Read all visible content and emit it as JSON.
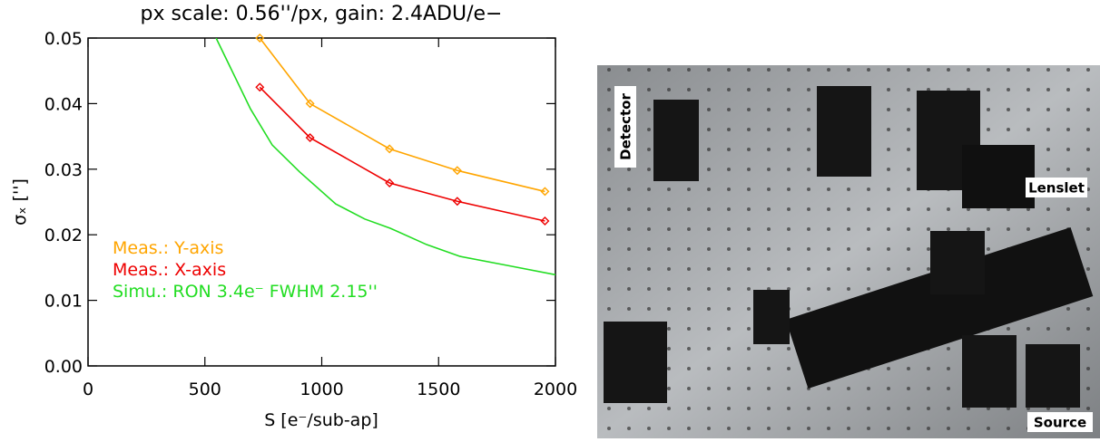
{
  "chart_data": {
    "type": "line",
    "title": "px scale: 0.56''/px, gain: 2.4ADU/e−",
    "x_label": "S [e⁻/sub-ap]",
    "y_label": "σₓ ['']",
    "xlim": [
      0,
      2000
    ],
    "xticks": [
      0,
      500,
      1000,
      1500,
      2000
    ],
    "ylim": [
      0,
      0.05
    ],
    "yticks": [
      {
        "value": 0,
        "label": "0.00"
      },
      {
        "value": 0.01,
        "label": "0.01"
      },
      {
        "value": 0.02,
        "label": "0.02"
      },
      {
        "value": 0.03,
        "label": "0.03"
      },
      {
        "value": 0.04,
        "label": "0.04"
      },
      {
        "value": 0.05,
        "label": "0.05"
      }
    ],
    "series": [
      {
        "name": "Meas.: Y-axis",
        "color": "#ffa500",
        "marker": "diamond",
        "x": [
          735,
          950,
          1290,
          1580,
          1955
        ],
        "values": [
          0.05,
          0.04,
          0.0331,
          0.0298,
          0.0266
        ]
      },
      {
        "name": "Meas.: X-axis",
        "color": "#ee0000",
        "marker": "diamond",
        "x": [
          735,
          950,
          1290,
          1580,
          1955
        ],
        "values": [
          0.0425,
          0.0348,
          0.0279,
          0.0251,
          0.0221
        ]
      },
      {
        "name": "Simu.: RON 3.4e⁻ FWHM 2.15''",
        "color": "#22dd22",
        "marker": "none",
        "x": [
          548,
          695,
          788,
          905,
          1060,
          1184,
          1293,
          1449,
          1592,
          1798,
          2000
        ],
        "values": [
          0.05,
          0.0392,
          0.0337,
          0.0296,
          0.0247,
          0.0224,
          0.021,
          0.0185,
          0.0167,
          0.0153,
          0.0139
        ]
      }
    ]
  },
  "photo": {
    "labels": [
      "Detector",
      "Lenslet",
      "Source"
    ]
  }
}
